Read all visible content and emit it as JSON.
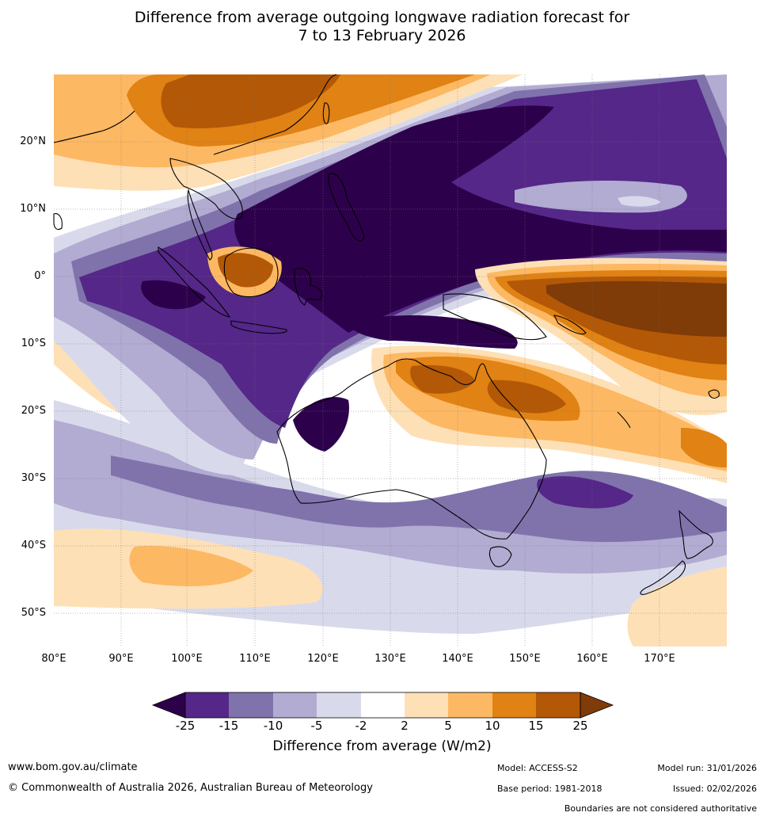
{
  "title": {
    "line1": "Difference from average outgoing longwave radiation forecast for",
    "line2": "7 to 13 February 2026"
  },
  "map": {
    "lon_ticks": [
      "80°E",
      "90°E",
      "100°E",
      "110°E",
      "120°E",
      "130°E",
      "140°E",
      "150°E",
      "160°E",
      "170°E"
    ],
    "lat_ticks": [
      "20°N",
      "10°N",
      "0°",
      "10°S",
      "20°S",
      "30°S",
      "40°S",
      "50°S"
    ],
    "lon_range": [
      80,
      180
    ],
    "lat_range": [
      -55,
      30
    ]
  },
  "colorbar": {
    "title": "Difference from average (W/m2)",
    "tick_labels": [
      "-25",
      "-15",
      "-10",
      "-5",
      "-2",
      "2",
      "5",
      "10",
      "15",
      "25"
    ],
    "colors": [
      "#2d004b",
      "#542788",
      "#8073ac",
      "#b2abd2",
      "#d8daeb",
      "#ffffff",
      "#fee0b6",
      "#fdb863",
      "#e08214",
      "#b35806",
      "#7f3b08"
    ]
  },
  "footer": {
    "website": "www.bom.gov.au/climate",
    "copyright": "© Commonwealth of Australia 2026, Australian Bureau of Meteorology",
    "model": "Model: ACCESS-S2",
    "base_period": "Base period: 1981-2018",
    "model_run": "Model run: 31/01/2026",
    "issued": "Issued: 02/02/2026",
    "disclaimer": "Boundaries are not considered authoritative"
  }
}
